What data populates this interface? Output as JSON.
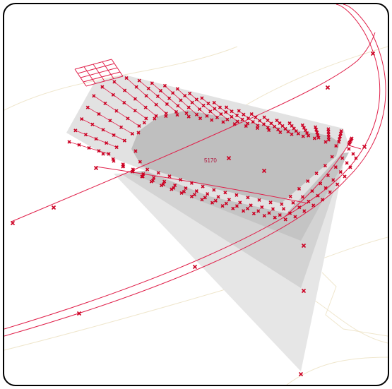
{
  "viewport": {
    "background": "#ffffff",
    "frame_color": "#000000",
    "line_color": "#e0204a",
    "marker_color": "#cc0022",
    "contour_color": "#efe6cc",
    "fill_light": "#e4e4e4",
    "fill_mid": "#c8c8c8",
    "fill_dark": "#b5b5b5"
  },
  "labels": {
    "parcel_label": "5170"
  }
}
